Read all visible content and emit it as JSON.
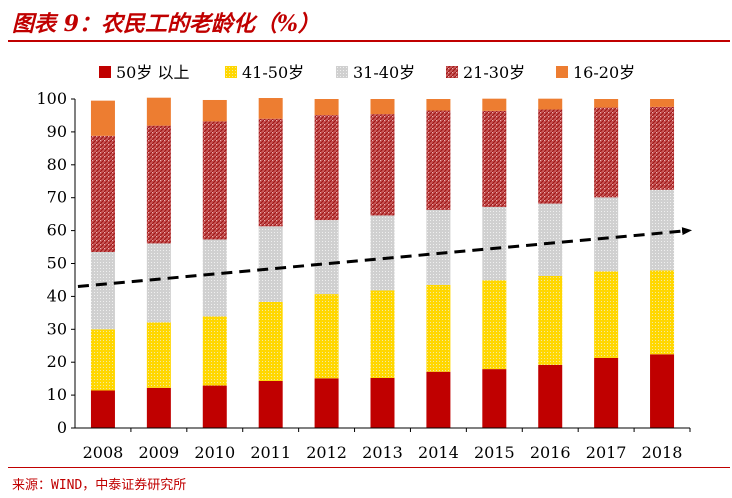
{
  "header": {
    "title": "图表 9：农民工的老龄化（%）"
  },
  "footer": {
    "source": "来源：WIND，中泰证券研究所"
  },
  "colors": {
    "accent": "#c00000"
  },
  "chart_data": {
    "type": "bar",
    "stacked": true,
    "categories": [
      "2008",
      "2009",
      "2010",
      "2011",
      "2012",
      "2013",
      "2014",
      "2015",
      "2016",
      "2017",
      "2018"
    ],
    "series": [
      {
        "name": "50岁 以上",
        "color": "#c00000",
        "pattern": "solid",
        "values": [
          11.4,
          12.2,
          12.9,
          14.3,
          15.1,
          15.2,
          17.1,
          17.9,
          19.2,
          21.3,
          22.4
        ]
      },
      {
        "name": "41-50岁",
        "color": "#ffd700",
        "pattern": "dots",
        "values": [
          18.6,
          19.9,
          21.0,
          24.0,
          25.6,
          26.6,
          26.4,
          27.0,
          27.0,
          26.3,
          25.5
        ]
      },
      {
        "name": "31-40岁",
        "color": "#d9d9d9",
        "pattern": "dots",
        "values": [
          23.5,
          24.0,
          23.4,
          23.0,
          22.5,
          22.8,
          22.8,
          22.3,
          22.0,
          22.5,
          24.5
        ]
      },
      {
        "name": "21-30岁",
        "color": "#b22222",
        "pattern": "hatch",
        "values": [
          35.3,
          35.8,
          35.9,
          32.7,
          31.9,
          30.8,
          30.2,
          29.2,
          28.6,
          27.3,
          25.2
        ]
      },
      {
        "name": "16-20岁",
        "color": "#ed7d31",
        "pattern": "solid",
        "values": [
          10.7,
          8.5,
          6.5,
          6.3,
          4.9,
          4.6,
          3.5,
          3.7,
          3.3,
          2.6,
          2.4
        ]
      }
    ],
    "yticks": [
      "0",
      "10",
      "20",
      "30",
      "40",
      "50",
      "60",
      "70",
      "80",
      "90",
      "100"
    ],
    "ylim": [
      0,
      100
    ],
    "grid": false,
    "legend_position": "top",
    "trend_line": {
      "style": "dashed-arrow",
      "start": [
        "2008",
        43
      ],
      "end": [
        "2018",
        60
      ]
    }
  }
}
